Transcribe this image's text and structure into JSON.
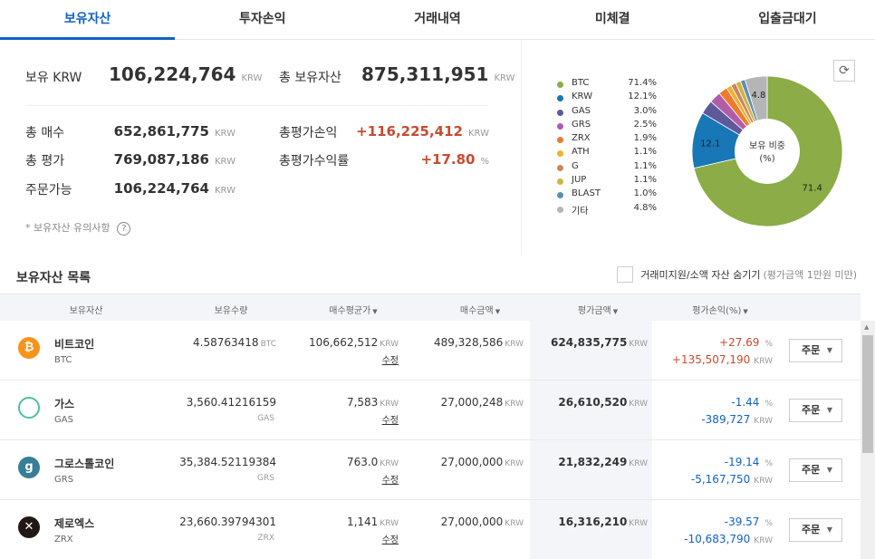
{
  "tabs": [
    {
      "label": "보유자산",
      "active": true
    },
    {
      "label": "투자손익"
    },
    {
      "label": "거래내역"
    },
    {
      "label": "미체결"
    },
    {
      "label": "입출금대기"
    }
  ],
  "summary": {
    "krw_label": "보유 KRW",
    "krw_value": "106,224,764",
    "total_label": "총 보유자산",
    "total_value": "875,311,951",
    "unit": "KRW",
    "buy_label": "총 매수",
    "buy_value": "652,861,775",
    "eval_label": "총 평가",
    "eval_value": "769,087,186",
    "orderable_label": "주문가능",
    "orderable_value": "106,224,764",
    "pl_label": "총평가손익",
    "pl_value": "+116,225,412",
    "rate_label": "총평가수익률",
    "rate_value": "+17.80",
    "rate_unit": "%",
    "note": "* 보유자산 유의사항",
    "help_icon": "?"
  },
  "pie": {
    "center_title": "보유 비중",
    "center_unit": "(%)",
    "refresh_icon": "⟳",
    "legend": [
      {
        "name": "BTC",
        "value": "71.4%",
        "color": "#8bac46"
      },
      {
        "name": "KRW",
        "value": "12.1%",
        "color": "#1877b6"
      },
      {
        "name": "GAS",
        "value": "3.0%",
        "color": "#5d5a9c"
      },
      {
        "name": "GRS",
        "value": "2.5%",
        "color": "#b05ca8"
      },
      {
        "name": "ZRX",
        "value": "1.9%",
        "color": "#ee7a2e"
      },
      {
        "name": "ATH",
        "value": "1.1%",
        "color": "#f2b134"
      },
      {
        "name": "G",
        "value": "1.1%",
        "color": "#c9875c"
      },
      {
        "name": "JUP",
        "value": "1.1%",
        "color": "#cfb443"
      },
      {
        "name": "BLAST",
        "value": "1.0%",
        "color": "#5c8fb0"
      },
      {
        "name": "기타",
        "value": "4.8%",
        "color": "#b5b5b5"
      }
    ],
    "slices": [
      71.4,
      12.1,
      3.0,
      2.5,
      1.9,
      1.1,
      1.1,
      1.1,
      1.0,
      4.8
    ],
    "slice_labels": [
      "71.4",
      "12.1",
      "",
      "",
      "",
      "",
      "",
      "",
      "",
      "4.8"
    ]
  },
  "list": {
    "title": "보유자산 목록",
    "hide_label": "거래미지원/소액 자산 숨기기",
    "hide_hint": "(평가금액 1만원 미만)",
    "headers": [
      "보유자산",
      "보유수량",
      "매수평균가",
      "매수금액",
      "평가금액",
      "평가손익(%)"
    ],
    "sort_arrow": "▼",
    "edit_label": "수정",
    "order_label": "주문",
    "caret": "▼",
    "rows": [
      {
        "name": "비트코인",
        "symbol": "BTC",
        "qty": "4.58763418",
        "qty_unit": "BTC",
        "avg": "106,662,512",
        "buy": "489,328,586",
        "eval": "624,835,775",
        "pct": "+27.69",
        "amt": "+135,507,190",
        "dir": "up",
        "icon_color": "#f7931a",
        "icon_text": "₿"
      },
      {
        "name": "가스",
        "symbol": "GAS",
        "qty": "3,560.41216159",
        "qty_unit": "GAS",
        "avg": "7,583",
        "buy": "27,000,248",
        "eval": "26,610,520",
        "pct": "-1.44",
        "amt": "-389,727",
        "dir": "down",
        "icon_color": "#ffffff",
        "icon_text": ""
      },
      {
        "name": "그로스톨코인",
        "symbol": "GRS",
        "qty": "35,384.52119384",
        "qty_unit": "GRS",
        "avg": "763.0",
        "buy": "27,000,000",
        "eval": "21,832,249",
        "pct": "-19.14",
        "amt": "-5,167,750",
        "dir": "down",
        "icon_color": "#377e96",
        "icon_text": "g"
      },
      {
        "name": "제로엑스",
        "symbol": "ZRX",
        "qty": "23,660.39794301",
        "qty_unit": "ZRX",
        "avg": "1,141",
        "buy": "27,000,000",
        "eval": "16,316,210",
        "pct": "-39.57",
        "amt": "-10,683,790",
        "dir": "down",
        "icon_color": "#231815",
        "icon_text": "✕"
      }
    ]
  },
  "colors": {
    "accent": "#1261c4",
    "up": "#c84a31",
    "down": "#1261c4"
  }
}
